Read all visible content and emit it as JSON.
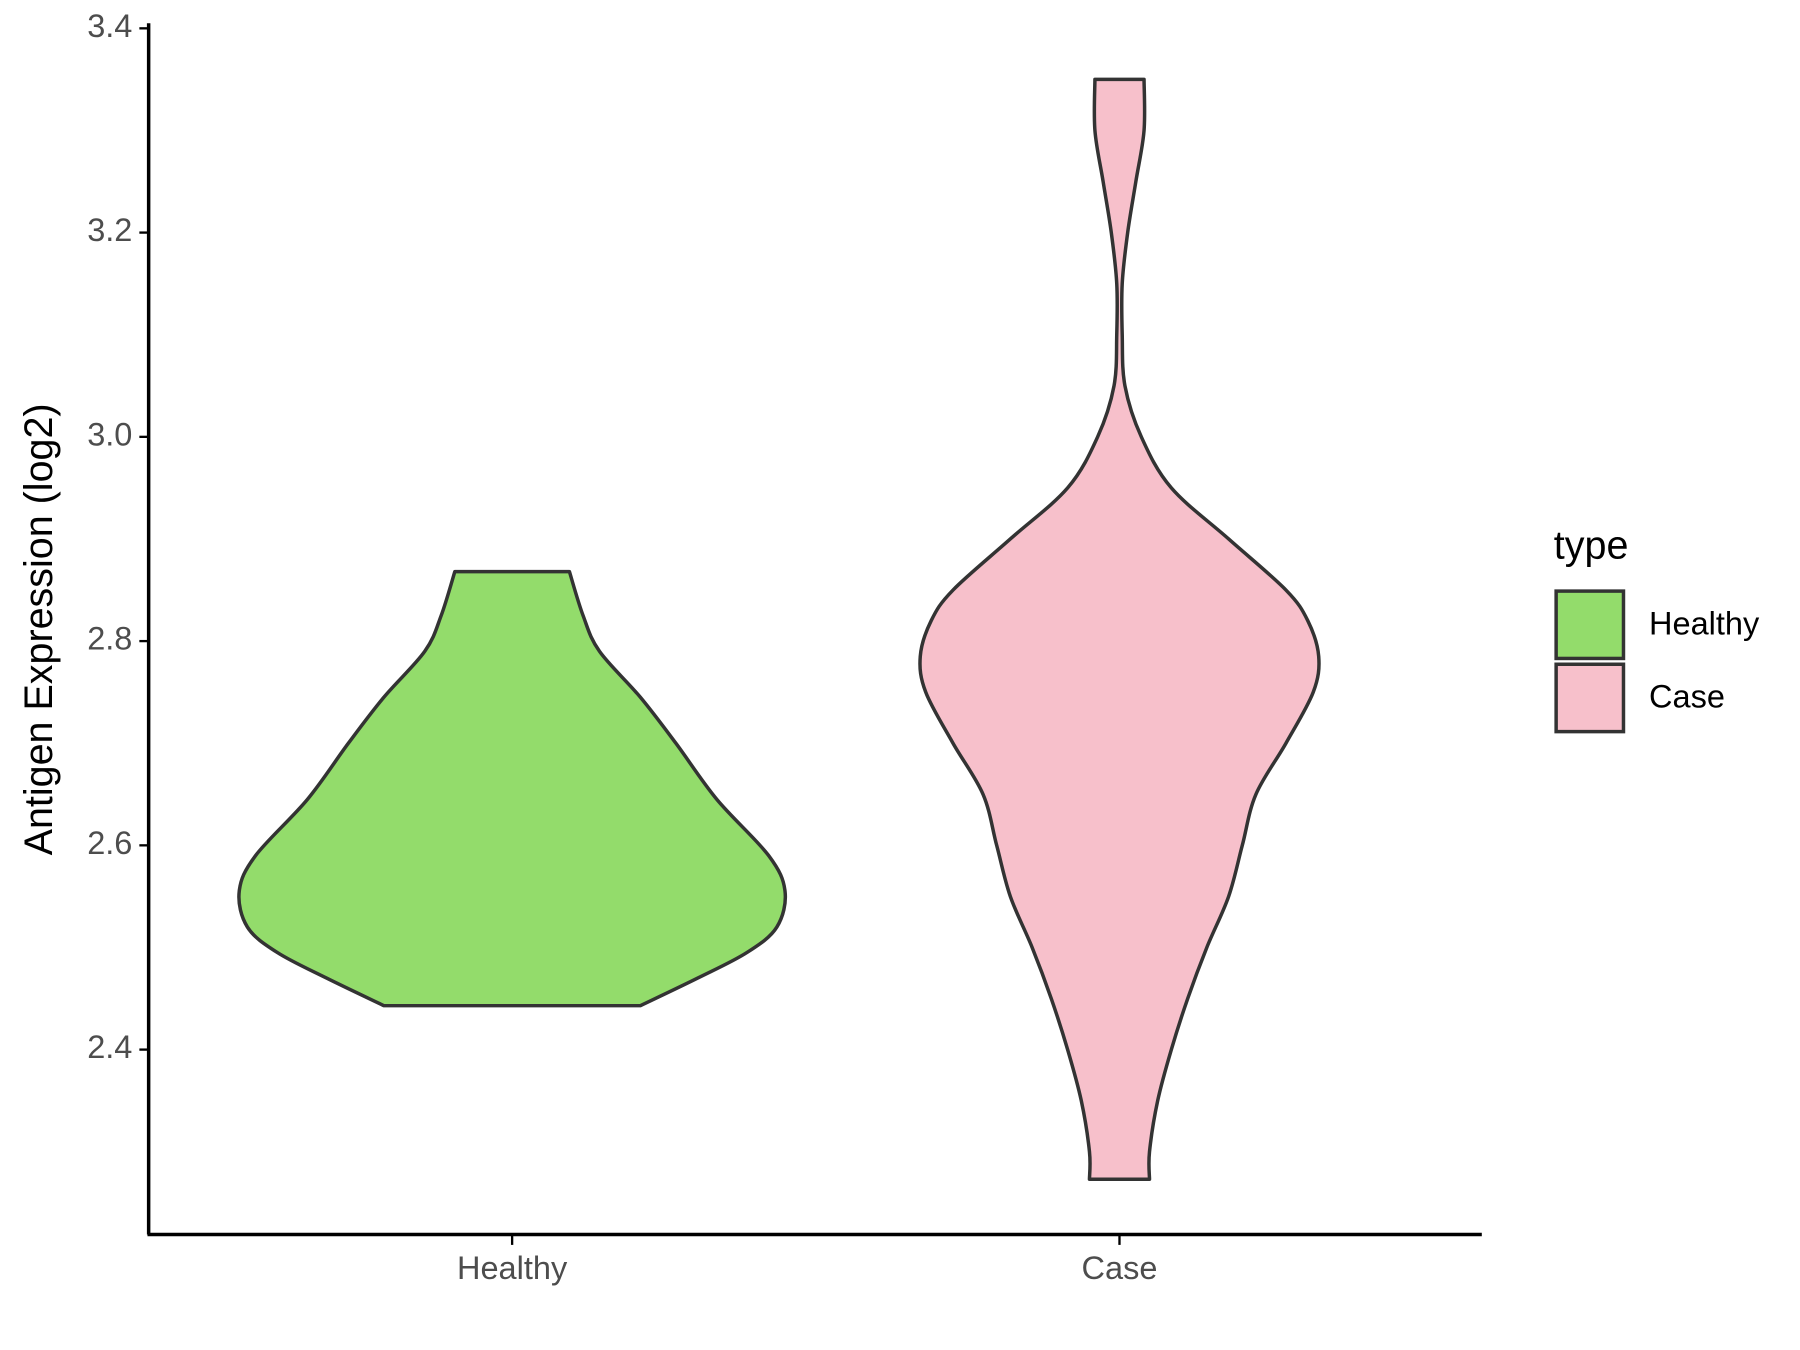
{
  "chart_data": {
    "type": "violin",
    "y_label": "Antigen Expression (log2)",
    "categories": [
      "Healthy",
      "Case"
    ],
    "legend_title": "type",
    "ylim": [
      2.219,
      3.405
    ],
    "yticks": [
      2.4,
      2.6,
      2.8,
      {
        "value": 3,
        "label": "3.0"
      },
      3.2,
      3.4
    ],
    "series": [
      {
        "name": "Healthy",
        "color": "#93dc6b",
        "density": {
          "y": [
            2.443,
            2.47,
            2.495,
            2.52,
            2.555,
            2.59,
            2.645,
            2.7,
            2.745,
            2.79,
            2.825,
            2.868
          ],
          "width": [
            0.47,
            0.68,
            0.86,
            0.97,
            1.0,
            0.94,
            0.75,
            0.6,
            0.47,
            0.32,
            0.26,
            0.21
          ]
        }
      },
      {
        "name": "Case",
        "color": "#f7c0cb",
        "density": {
          "y": [
            2.273,
            2.3,
            2.35,
            2.4,
            2.45,
            2.5,
            2.55,
            2.6,
            2.65,
            2.7,
            2.75,
            2.785,
            2.82,
            2.85,
            2.9,
            2.95,
            3.0,
            3.05,
            3.1,
            3.15,
            3.2,
            3.25,
            3.3,
            3.35
          ],
          "width": [
            0.11,
            0.11,
            0.14,
            0.19,
            0.25,
            0.32,
            0.4,
            0.45,
            0.5,
            0.61,
            0.71,
            0.73,
            0.69,
            0.61,
            0.4,
            0.19,
            0.08,
            0.02,
            0.01,
            0.01,
            0.03,
            0.06,
            0.09,
            0.09
          ]
        }
      }
    ]
  }
}
